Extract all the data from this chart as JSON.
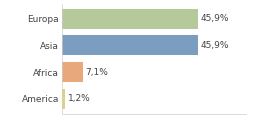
{
  "categories": [
    "Europa",
    "Asia",
    "Africa",
    "America"
  ],
  "values": [
    45.9,
    45.9,
    7.1,
    1.2
  ],
  "labels": [
    "45,9%",
    "45,9%",
    "7,1%",
    "1,2%"
  ],
  "bar_colors": [
    "#b5c99a",
    "#7b9dc0",
    "#e8a87c",
    "#e0d080"
  ],
  "background_color": "#ffffff",
  "xlim": [
    0,
    62
  ],
  "bar_height": 0.75,
  "label_fontsize": 6.5,
  "value_fontsize": 6.5
}
